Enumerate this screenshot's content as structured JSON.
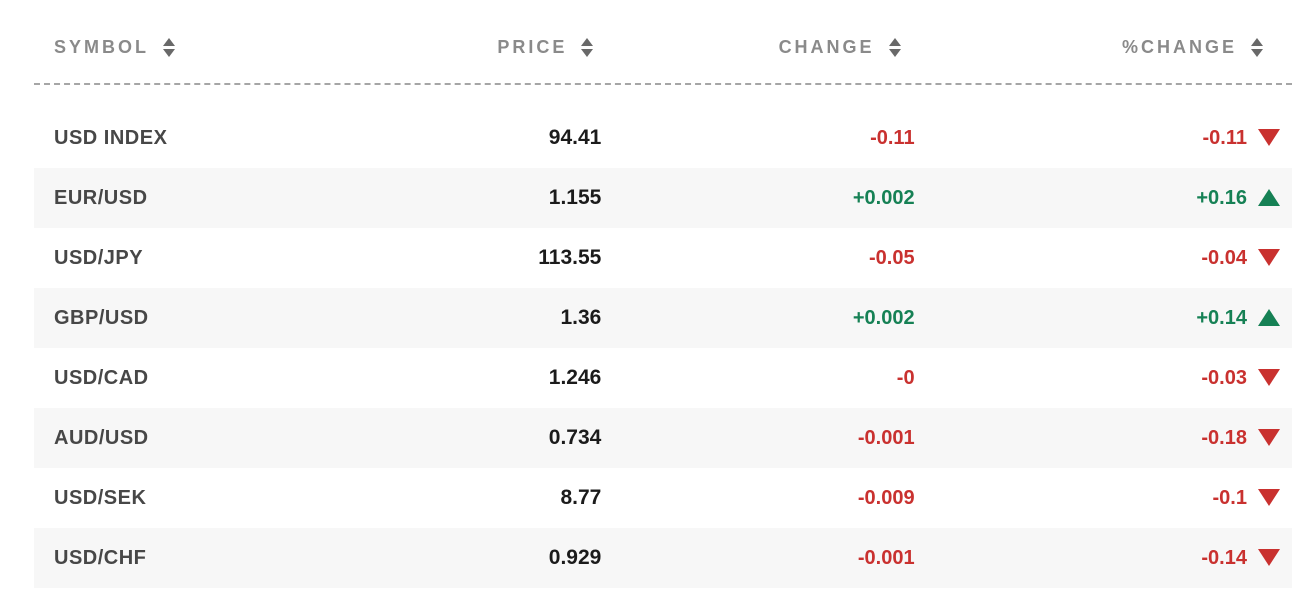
{
  "colors": {
    "positive": "#168155",
    "negative": "#c9312f",
    "header_text": "#8a8a8a",
    "row_stripe": "#f7f7f7"
  },
  "table": {
    "columns": [
      {
        "label": "SYMBOL",
        "sort_icon": "sort-icon"
      },
      {
        "label": "PRICE",
        "sort_icon": "sort-icon"
      },
      {
        "label": "CHANGE",
        "sort_icon": "sort-icon"
      },
      {
        "label": "%CHANGE",
        "sort_icon": "sort-icon"
      }
    ],
    "rows": [
      {
        "symbol": "USD INDEX",
        "price": "94.41",
        "change": "-0.11",
        "pct_change": "-0.11",
        "direction": "down"
      },
      {
        "symbol": "EUR/USD",
        "price": "1.155",
        "change": "+0.002",
        "pct_change": "+0.16",
        "direction": "up"
      },
      {
        "symbol": "USD/JPY",
        "price": "113.55",
        "change": "-0.05",
        "pct_change": "-0.04",
        "direction": "down"
      },
      {
        "symbol": "GBP/USD",
        "price": "1.36",
        "change": "+0.002",
        "pct_change": "+0.14",
        "direction": "up"
      },
      {
        "symbol": "USD/CAD",
        "price": "1.246",
        "change": "-0",
        "pct_change": "-0.03",
        "direction": "down"
      },
      {
        "symbol": "AUD/USD",
        "price": "0.734",
        "change": "-0.001",
        "pct_change": "-0.18",
        "direction": "down"
      },
      {
        "symbol": "USD/SEK",
        "price": "8.77",
        "change": "-0.009",
        "pct_change": "-0.1",
        "direction": "down"
      },
      {
        "symbol": "USD/CHF",
        "price": "0.929",
        "change": "-0.001",
        "pct_change": "-0.14",
        "direction": "down"
      }
    ]
  }
}
